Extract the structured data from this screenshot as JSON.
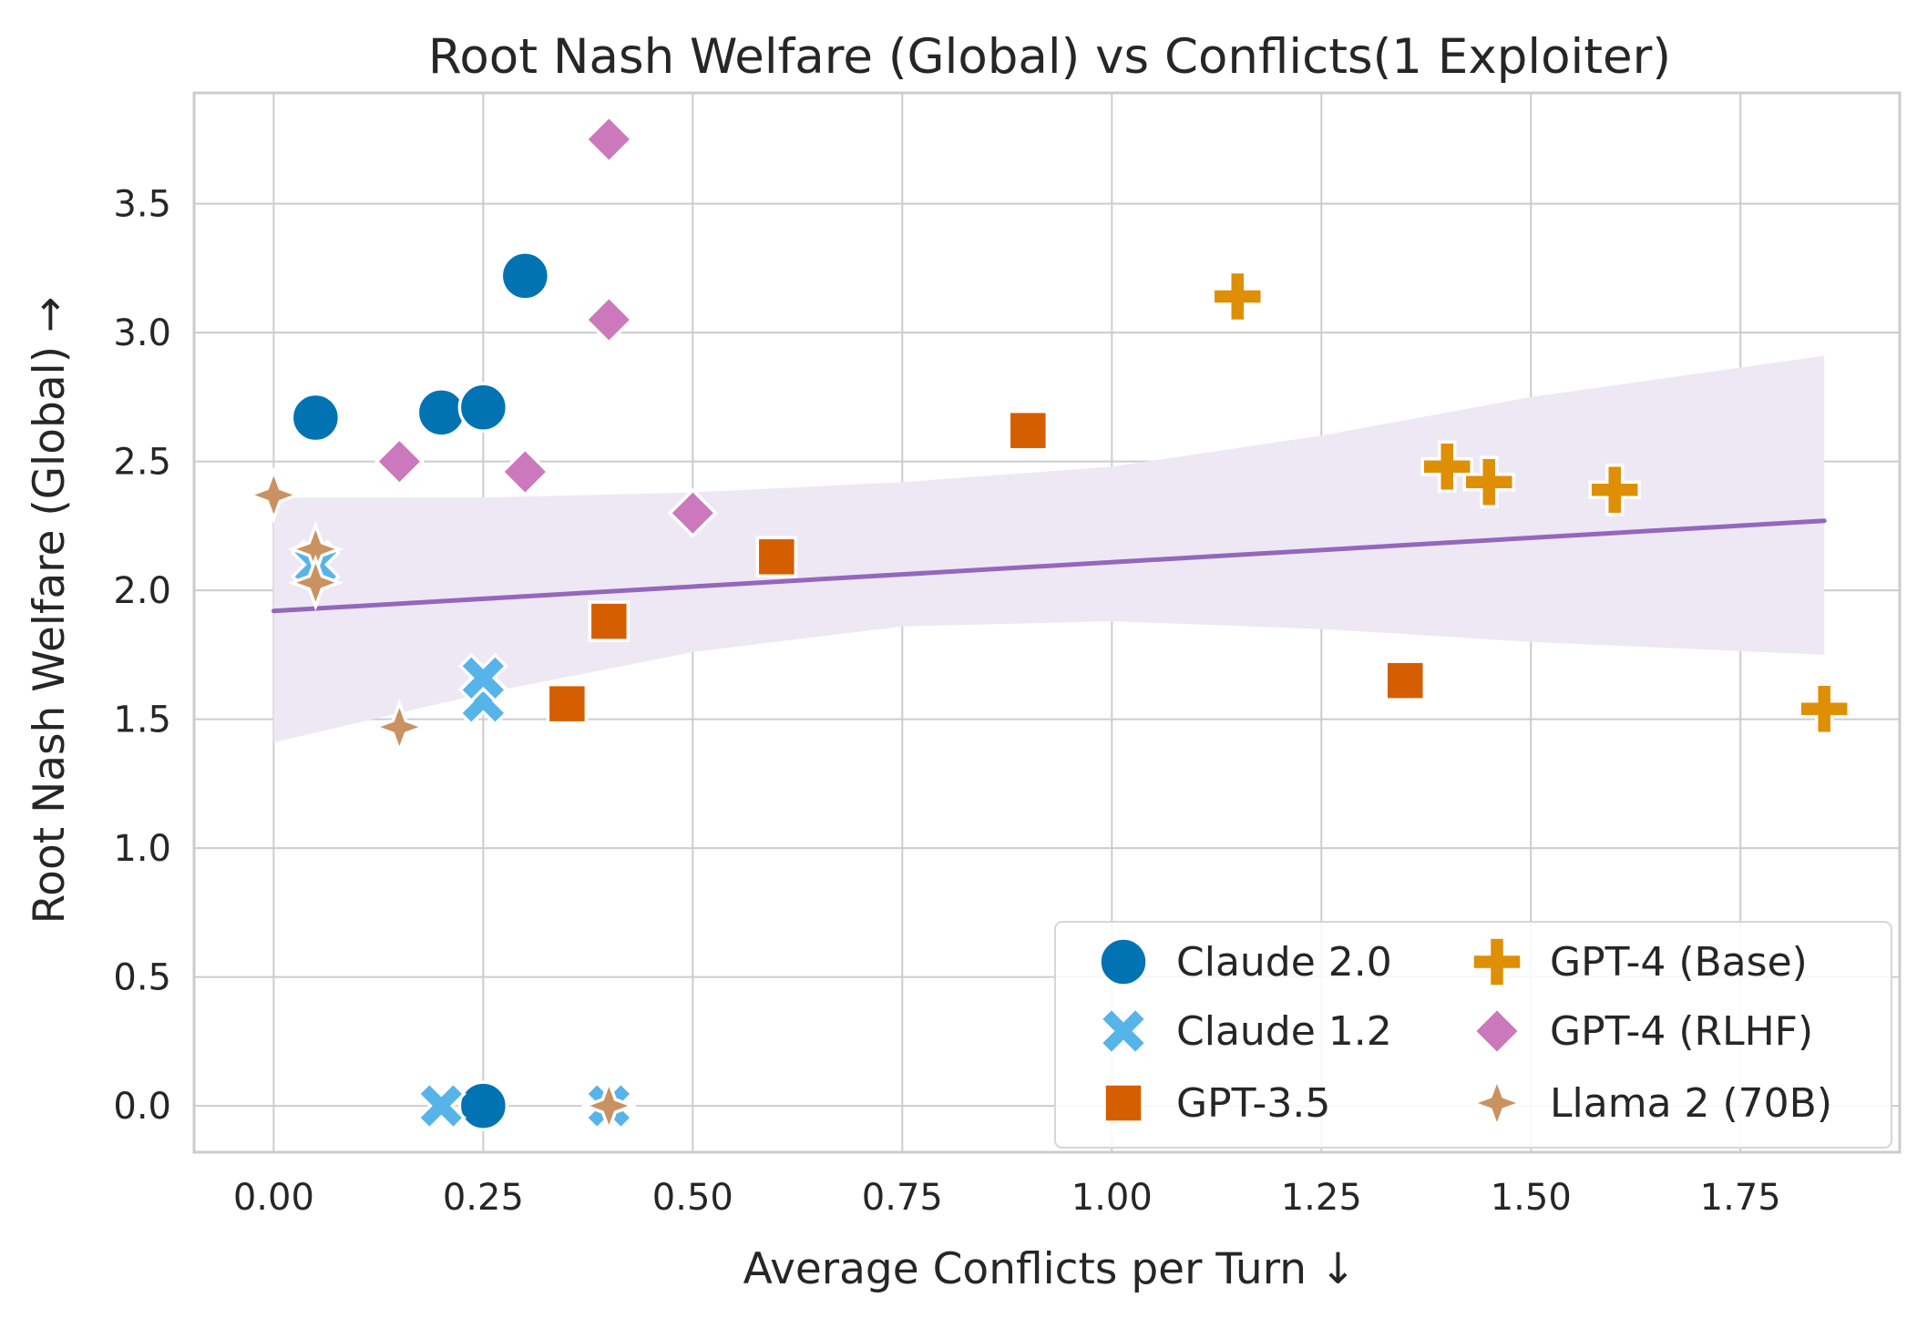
{
  "chart_data": {
    "type": "scatter",
    "title": "Root Nash Welfare (Global) vs Conflicts(1 Exploiter)",
    "xlabel": "Average Conflicts per Turn ↓",
    "ylabel": "Root Nash Welfare (Global) →",
    "xlim": [
      -0.095,
      1.94
    ],
    "ylim": [
      -0.18,
      3.93
    ],
    "xticks": [
      "0.00",
      "0.25",
      "0.50",
      "0.75",
      "1.00",
      "1.25",
      "1.50",
      "1.75"
    ],
    "yticks": [
      "0.0",
      "0.5",
      "1.0",
      "1.5",
      "2.0",
      "2.5",
      "3.0",
      "3.5"
    ],
    "xtick_values": [
      0,
      0.25,
      0.5,
      0.75,
      1.0,
      1.25,
      1.5,
      1.75
    ],
    "ytick_values": [
      0,
      0.5,
      1.0,
      1.5,
      2.0,
      2.5,
      3.0,
      3.5
    ],
    "grid": true,
    "legend_position": "lower-right",
    "legend_columns": 2,
    "series": [
      {
        "name": "Claude 2.0",
        "marker": "circle",
        "color": "#0173b2",
        "points": [
          [
            0.05,
            2.67
          ],
          [
            0.2,
            2.69
          ],
          [
            0.25,
            2.71
          ],
          [
            0.3,
            3.22
          ],
          [
            0.25,
            0.0
          ]
        ]
      },
      {
        "name": "Claude 1.2",
        "marker": "x",
        "color": "#56b4e9",
        "points": [
          [
            0.05,
            2.1
          ],
          [
            0.25,
            1.57
          ],
          [
            0.25,
            1.66
          ],
          [
            0.2,
            0.0
          ],
          [
            0.4,
            0.0
          ]
        ]
      },
      {
        "name": "GPT-3.5",
        "marker": "square",
        "color": "#d55e00",
        "points": [
          [
            0.35,
            1.56
          ],
          [
            0.4,
            1.88
          ],
          [
            0.6,
            2.13
          ],
          [
            0.9,
            2.62
          ],
          [
            1.35,
            1.65
          ]
        ]
      },
      {
        "name": "GPT-4 (Base)",
        "marker": "plus",
        "color": "#de8f05",
        "points": [
          [
            1.15,
            3.14
          ],
          [
            1.4,
            2.48
          ],
          [
            1.45,
            2.42
          ],
          [
            1.6,
            2.39
          ],
          [
            1.85,
            1.54
          ]
        ]
      },
      {
        "name": "GPT-4 (RLHF)",
        "marker": "diamond",
        "color": "#cc78bc",
        "points": [
          [
            0.15,
            2.5
          ],
          [
            0.3,
            2.46
          ],
          [
            0.4,
            3.05
          ],
          [
            0.4,
            3.75
          ],
          [
            0.5,
            2.3
          ]
        ]
      },
      {
        "name": "Llama 2 (70B)",
        "marker": "star4",
        "color": "#ca9161",
        "points": [
          [
            0.0,
            2.37
          ],
          [
            0.05,
            2.16
          ],
          [
            0.05,
            2.03
          ],
          [
            0.15,
            1.47
          ],
          [
            0.4,
            0.0
          ]
        ]
      }
    ],
    "regression": {
      "color": "#9467bd",
      "band_color": "#eee8f5",
      "line": [
        [
          0.0,
          1.92
        ],
        [
          1.85,
          2.27
        ]
      ],
      "band_upper": [
        [
          0.0,
          2.36
        ],
        [
          0.25,
          2.36
        ],
        [
          0.5,
          2.38
        ],
        [
          0.75,
          2.42
        ],
        [
          1.0,
          2.48
        ],
        [
          1.25,
          2.6
        ],
        [
          1.5,
          2.75
        ],
        [
          1.85,
          2.91
        ]
      ],
      "band_lower": [
        [
          0.0,
          1.41
        ],
        [
          0.25,
          1.6
        ],
        [
          0.5,
          1.76
        ],
        [
          0.75,
          1.86
        ],
        [
          1.0,
          1.88
        ],
        [
          1.25,
          1.85
        ],
        [
          1.5,
          1.8
        ],
        [
          1.85,
          1.75
        ]
      ]
    }
  }
}
